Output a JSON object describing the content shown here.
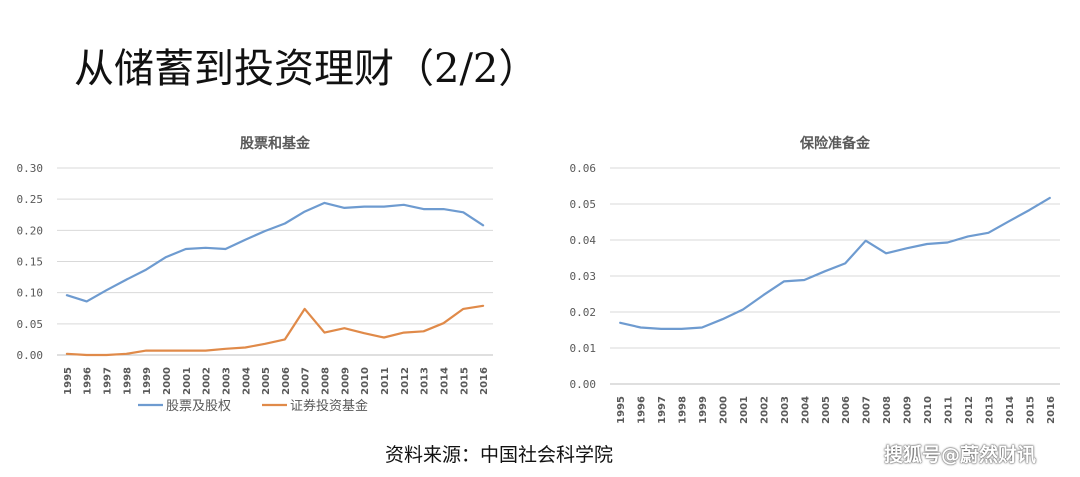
{
  "page_title": "从储蓄到投资理财（2/2）",
  "source": "资料来源：中国社会科学院",
  "watermark": "搜狐号@蔚然财讯",
  "colors": {
    "series_blue": "#6e9bd0",
    "series_orange": "#e08a49",
    "grid": "#d9d9d9",
    "axis_text": "#595959"
  },
  "chart_data": [
    {
      "type": "line",
      "title": "股票和基金",
      "x": [
        "1995",
        "1996",
        "1997",
        "1998",
        "1999",
        "2000",
        "2001",
        "2002",
        "2003",
        "2004",
        "2005",
        "2006",
        "2007",
        "2008",
        "2009",
        "2010",
        "2011",
        "2012",
        "2013",
        "2014",
        "2015",
        "2016"
      ],
      "ylim": [
        0,
        0.3
      ],
      "yticks": [
        "0.00",
        "0.05",
        "0.10",
        "0.15",
        "0.20",
        "0.25",
        "0.30"
      ],
      "grid": true,
      "legend": "bottom",
      "series": [
        {
          "name": "股票及股权",
          "color": "#6e9bd0",
          "values": [
            0.096,
            0.086,
            0.104,
            0.121,
            0.137,
            0.157,
            0.17,
            0.172,
            0.17,
            0.185,
            0.199,
            0.211,
            0.23,
            0.244,
            0.236,
            0.238,
            0.238,
            0.241,
            0.234,
            0.234,
            0.229,
            0.208
          ]
        },
        {
          "name": "证券投资基金",
          "color": "#e08a49",
          "values": [
            0.002,
            0.0,
            0.0,
            0.002,
            0.007,
            0.007,
            0.007,
            0.007,
            0.01,
            0.012,
            0.018,
            0.025,
            0.074,
            0.036,
            0.043,
            0.035,
            0.028,
            0.036,
            0.038,
            0.051,
            0.074,
            0.079
          ]
        }
      ]
    },
    {
      "type": "line",
      "title": "保险准备金",
      "x": [
        "1995",
        "1996",
        "1997",
        "1998",
        "1999",
        "2000",
        "2001",
        "2002",
        "2003",
        "2004",
        "2005",
        "2006",
        "2007",
        "2008",
        "2009",
        "2010",
        "2011",
        "2012",
        "2013",
        "2014",
        "2015",
        "2016"
      ],
      "ylim": [
        0,
        0.06
      ],
      "yticks": [
        "0.00",
        "0.01",
        "0.02",
        "0.03",
        "0.04",
        "0.05",
        "0.06"
      ],
      "grid": true,
      "series": [
        {
          "color": "#6e9bd0",
          "values": [
            0.017,
            0.0157,
            0.0153,
            0.0153,
            0.0157,
            0.018,
            0.0207,
            0.0247,
            0.0285,
            0.0289,
            0.0313,
            0.0335,
            0.0398,
            0.0363,
            0.0377,
            0.0389,
            0.0393,
            0.041,
            0.042,
            0.0452,
            0.0483,
            0.0517
          ]
        }
      ]
    }
  ]
}
